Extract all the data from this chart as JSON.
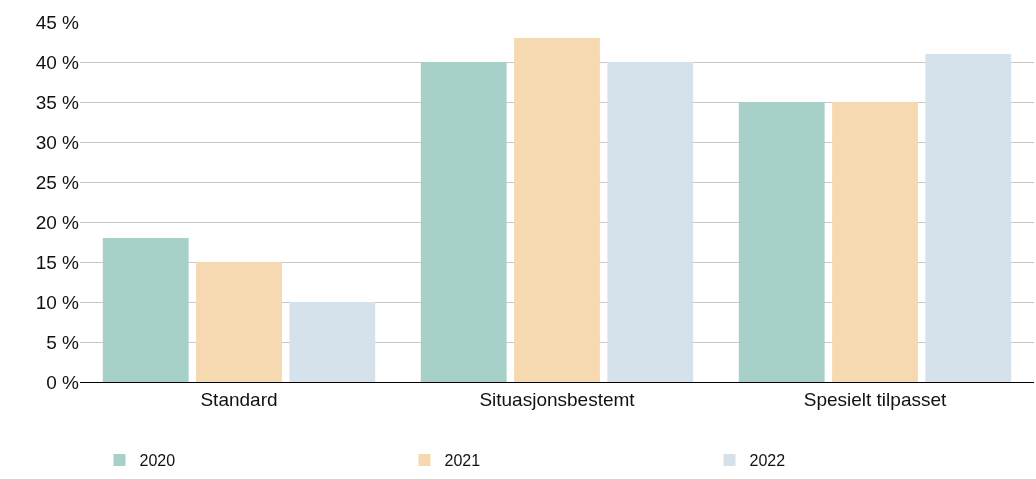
{
  "chart_data": {
    "type": "bar",
    "categories": [
      "Standard",
      "Situasjonsbestemt",
      "Spesielt tilpasset"
    ],
    "series": [
      {
        "name": "2020",
        "color": "#a7d0c8",
        "values": [
          18,
          40,
          35
        ]
      },
      {
        "name": "2021",
        "color": "#f6d9b0",
        "values": [
          15,
          43,
          35
        ]
      },
      {
        "name": "2022",
        "color": "#d6e2eb",
        "values": [
          10,
          40,
          41
        ]
      }
    ],
    "ylim": [
      0,
      45
    ],
    "yticks": [
      {
        "value": 0,
        "label": "0 %"
      },
      {
        "value": 5,
        "label": "5 %"
      },
      {
        "value": 10,
        "label": "10 %"
      },
      {
        "value": 15,
        "label": "15 %"
      },
      {
        "value": 20,
        "label": "20 %"
      },
      {
        "value": 25,
        "label": "25 %"
      },
      {
        "value": 30,
        "label": "30 %"
      },
      {
        "value": 35,
        "label": "35 %"
      },
      {
        "value": 40,
        "label": "40 %"
      },
      {
        "value": 45,
        "label": "45 %"
      }
    ],
    "grid": "y",
    "legend": "bottom"
  }
}
